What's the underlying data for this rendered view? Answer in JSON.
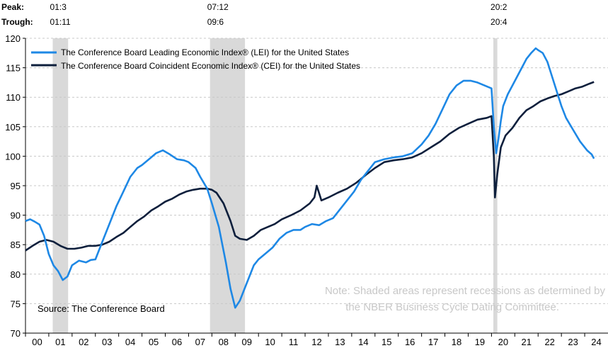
{
  "peak_label": "Peak:",
  "trough_label": "Trough:",
  "source": "Source: The Conference Board",
  "note": [
    "Note: Shaded areas represent recessions as determined by",
    "the NBER Business Cycle Dating Committee."
  ],
  "colors": {
    "lei": "#1e88e5",
    "cei": "#0d1f3c",
    "recession": "#d9d9d9",
    "grid": "#c8c8c8"
  },
  "chart_data": {
    "type": "line",
    "title": "",
    "xlabel": "",
    "ylabel": "",
    "ylim": [
      70,
      120
    ],
    "yticks": [
      70,
      75,
      80,
      85,
      90,
      95,
      100,
      105,
      110,
      115,
      120
    ],
    "xlim": [
      2000.0,
      2025.0
    ],
    "xtick_labels": [
      "00",
      "01",
      "02",
      "03",
      "04",
      "05",
      "06",
      "07",
      "08",
      "09",
      "10",
      "11",
      "12",
      "13",
      "14",
      "15",
      "16",
      "17",
      "18",
      "19",
      "20",
      "21",
      "22",
      "23",
      "24"
    ],
    "grid": "horizontal dashed",
    "legend_placement": "top-left",
    "recessions": [
      {
        "peak": "01:3",
        "trough": "01:11",
        "start": 2001.17,
        "end": 2001.83
      },
      {
        "peak": "07:12",
        "trough": "09:6",
        "start": 2007.92,
        "end": 2009.42
      },
      {
        "peak": "20:2",
        "trough": "20:4",
        "start": 2020.08,
        "end": 2020.25
      }
    ],
    "series": [
      {
        "name": "The Conference Board Leading Economic Index® (LEI) for the United States",
        "x": [
          2000.0,
          2000.2,
          2000.4,
          2000.6,
          2000.8,
          2001.0,
          2001.2,
          2001.4,
          2001.6,
          2001.8,
          2002.0,
          2002.3,
          2002.6,
          2002.8,
          2003.0,
          2003.3,
          2003.6,
          2003.9,
          2004.2,
          2004.5,
          2004.8,
          2005.0,
          2005.3,
          2005.6,
          2005.9,
          2006.2,
          2006.5,
          2006.8,
          2007.0,
          2007.3,
          2007.5,
          2007.8,
          2008.0,
          2008.3,
          2008.6,
          2008.8,
          2009.0,
          2009.2,
          2009.4,
          2009.6,
          2009.8,
          2010.0,
          2010.3,
          2010.6,
          2010.9,
          2011.2,
          2011.5,
          2011.8,
          2012.0,
          2012.3,
          2012.6,
          2012.9,
          2013.2,
          2013.5,
          2013.8,
          2014.1,
          2014.4,
          2014.7,
          2015.0,
          2015.4,
          2015.8,
          2016.2,
          2016.6,
          2017.0,
          2017.3,
          2017.6,
          2017.9,
          2018.2,
          2018.5,
          2018.8,
          2019.1,
          2019.4,
          2019.7,
          2020.0,
          2020.1,
          2020.2,
          2020.3,
          2020.4,
          2020.5,
          2020.7,
          2020.9,
          2021.1,
          2021.3,
          2021.5,
          2021.7,
          2021.9,
          2022.0,
          2022.2,
          2022.4,
          2022.6,
          2022.8,
          2023.0,
          2023.2,
          2023.5,
          2023.8,
          2024.1,
          2024.3,
          2024.4
        ],
        "values": [
          89.0,
          89.3,
          88.9,
          88.4,
          86.5,
          83.4,
          81.5,
          80.5,
          79.0,
          79.6,
          81.5,
          82.3,
          82.0,
          82.4,
          82.5,
          85.5,
          88.5,
          91.5,
          94.0,
          96.5,
          98.0,
          98.5,
          99.5,
          100.5,
          101.0,
          100.3,
          99.5,
          99.3,
          99.0,
          98.0,
          96.5,
          94.5,
          92.0,
          88.0,
          82.0,
          77.5,
          74.3,
          75.5,
          77.5,
          79.5,
          81.5,
          82.5,
          83.5,
          84.5,
          86.0,
          87.0,
          87.5,
          87.5,
          88.0,
          88.5,
          88.3,
          89.0,
          89.5,
          91.0,
          92.5,
          94.0,
          96.0,
          97.5,
          99.0,
          99.5,
          99.8,
          100.0,
          100.5,
          102.0,
          103.5,
          105.5,
          108.0,
          110.5,
          112.0,
          112.8,
          112.8,
          112.5,
          112.0,
          111.5,
          105.0,
          100.5,
          103.0,
          106.0,
          108.5,
          110.5,
          112.0,
          113.5,
          115.0,
          116.5,
          117.5,
          118.3,
          118.0,
          117.5,
          116.0,
          113.5,
          111.0,
          108.5,
          106.5,
          104.5,
          102.5,
          101.0,
          100.3,
          99.6
        ]
      },
      {
        "name": "The Conference Board Coincident Economic Index® (CEI) for the United States",
        "x": [
          2000.0,
          2000.3,
          2000.6,
          2000.9,
          2001.2,
          2001.5,
          2001.8,
          2002.1,
          2002.4,
          2002.7,
          2003.0,
          2003.3,
          2003.6,
          2003.9,
          2004.2,
          2004.5,
          2004.8,
          2005.1,
          2005.4,
          2005.7,
          2006.0,
          2006.3,
          2006.6,
          2006.9,
          2007.2,
          2007.5,
          2007.8,
          2008.0,
          2008.2,
          2008.5,
          2008.8,
          2009.0,
          2009.2,
          2009.5,
          2009.8,
          2010.1,
          2010.4,
          2010.7,
          2011.0,
          2011.4,
          2011.8,
          2012.2,
          2012.4,
          2012.5,
          2012.7,
          2013.0,
          2013.4,
          2013.8,
          2014.2,
          2014.6,
          2015.0,
          2015.4,
          2015.8,
          2016.2,
          2016.6,
          2017.0,
          2017.4,
          2017.8,
          2018.2,
          2018.6,
          2019.0,
          2019.4,
          2019.8,
          2020.0,
          2020.1,
          2020.15,
          2020.25,
          2020.4,
          2020.6,
          2020.9,
          2021.2,
          2021.5,
          2021.8,
          2022.1,
          2022.4,
          2022.7,
          2023.0,
          2023.3,
          2023.6,
          2023.9,
          2024.2,
          2024.4
        ],
        "values": [
          84.0,
          84.8,
          85.5,
          85.8,
          85.5,
          84.8,
          84.3,
          84.3,
          84.5,
          84.8,
          84.8,
          85.0,
          85.5,
          86.3,
          87.0,
          88.0,
          89.0,
          89.8,
          90.8,
          91.5,
          92.3,
          92.8,
          93.5,
          94.0,
          94.3,
          94.5,
          94.5,
          94.3,
          93.8,
          92.0,
          89.0,
          86.5,
          86.0,
          85.8,
          86.5,
          87.5,
          88.0,
          88.5,
          89.3,
          90.0,
          90.8,
          92.0,
          93.0,
          95.0,
          92.5,
          93.0,
          93.8,
          94.5,
          95.5,
          96.8,
          98.0,
          99.0,
          99.3,
          99.5,
          99.8,
          100.5,
          101.5,
          102.5,
          103.8,
          104.8,
          105.5,
          106.2,
          106.5,
          106.8,
          100.0,
          93.0,
          97.0,
          101.5,
          103.5,
          104.8,
          106.5,
          107.8,
          108.5,
          109.3,
          109.8,
          110.2,
          110.5,
          111.0,
          111.5,
          111.8,
          112.3,
          112.6
        ]
      }
    ]
  }
}
